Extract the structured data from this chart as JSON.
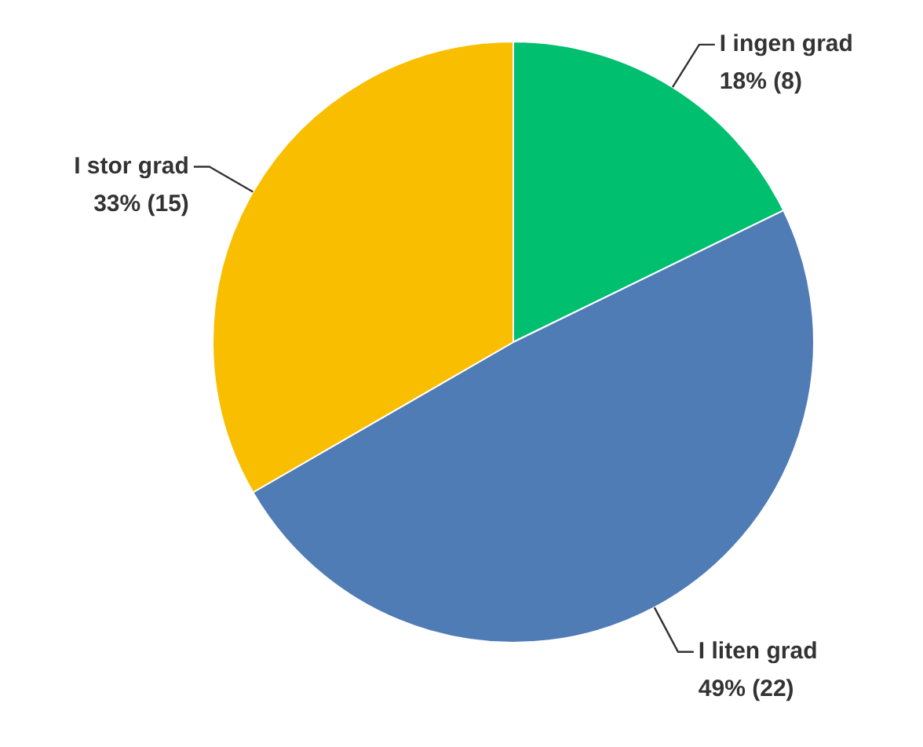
{
  "chart_data": {
    "type": "pie",
    "categories": [
      "I ingen grad",
      "I liten grad",
      "I stor grad"
    ],
    "values": [
      8,
      22,
      15
    ],
    "value_labels": [
      "18% (8)",
      "49% (22)",
      "33% (15)"
    ],
    "colors": [
      "#00bf6f",
      "#507cb6",
      "#f9be00"
    ],
    "legend": false
  }
}
